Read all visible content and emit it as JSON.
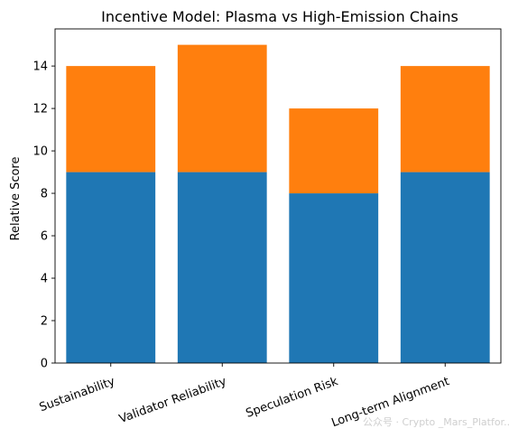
{
  "chart_data": {
    "type": "bar",
    "stacked": true,
    "title": "Incentive Model: Plasma vs High-Emission Chains",
    "xlabel": "",
    "ylabel": "Relative Score",
    "categories": [
      "Sustainability",
      "Validator Reliability",
      "Speculation Risk",
      "Long-term Alignment"
    ],
    "series": [
      {
        "values": [
          9,
          9,
          8,
          9
        ],
        "color": "#1f77b4"
      },
      {
        "values": [
          5,
          6,
          4,
          5
        ],
        "color": "#ff7f0e"
      }
    ],
    "ylim": [
      0,
      15.75
    ],
    "yticks": [
      0,
      2,
      4,
      6,
      8,
      10,
      12,
      14
    ],
    "xtick_rotation": -20,
    "grid": false,
    "legend": "none"
  },
  "watermark": "公众号 · Crypto _Mars_Platfor..."
}
